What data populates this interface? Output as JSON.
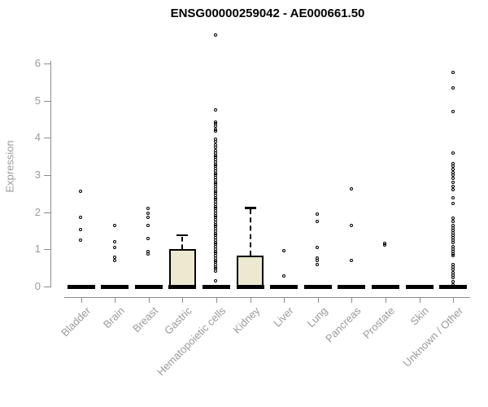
{
  "chart_data": {
    "type": "boxplot",
    "title": "ENSG00000259042 - AE000661.50",
    "ylabel": "Expression",
    "xlabel": "",
    "ylim": [
      0,
      6
    ],
    "yticks": [
      0,
      1,
      2,
      3,
      4,
      5,
      6
    ],
    "grid": false,
    "legend": "none",
    "categories": [
      "Bladder",
      "Brain",
      "Breast",
      "Gastric",
      "Hematopoietic cells",
      "Kidney",
      "Liver",
      "Lung",
      "Pancreas",
      "Prostate",
      "Skin",
      "Unknown / Other"
    ],
    "colors": {
      "box_fill": "#ede8d0",
      "box_border": "#000000",
      "point": "#000000",
      "axis": "#8c8c8c",
      "tick_label": "#9a9a9a",
      "title": "#000000"
    },
    "boxes": [
      {
        "category": "Bladder",
        "q1": 0,
        "median": 0,
        "q3": 0,
        "whisker_low": 0,
        "whisker_high": 0,
        "outliers": [
          2.56,
          1.84,
          1.53,
          1.23
        ]
      },
      {
        "category": "Brain",
        "q1": 0,
        "median": 0,
        "q3": 0,
        "whisker_low": 0,
        "whisker_high": 0,
        "outliers": [
          1.64,
          1.2,
          1.05,
          0.78,
          0.7
        ]
      },
      {
        "category": "Breast",
        "q1": 0,
        "median": 0,
        "q3": 0,
        "whisker_low": 0,
        "whisker_high": 0,
        "outliers": [
          2.1,
          1.95,
          1.84,
          1.64,
          1.29,
          0.94,
          0.87
        ]
      },
      {
        "category": "Gastric",
        "q1": 0,
        "median": 0,
        "q3": 1.0,
        "whisker_low": 0,
        "whisker_high": 1.38,
        "outliers": []
      },
      {
        "category": "Hematopoietic cells",
        "q1": 0,
        "median": 0,
        "q3": 0,
        "whisker_low": 0,
        "whisker_high": 0,
        "outliers": [
          6.74,
          4.74,
          4.42,
          4.36,
          4.3,
          4.22,
          4.16,
          3.96,
          3.88,
          3.8,
          3.72,
          3.64,
          3.58,
          3.52,
          3.46,
          3.4,
          3.34,
          3.28,
          3.22,
          3.16,
          3.1,
          3.04,
          2.98,
          2.92,
          2.86,
          2.8,
          2.74,
          2.68,
          2.62,
          2.56,
          2.5,
          2.44,
          2.38,
          2.32,
          2.26,
          2.2,
          2.14,
          2.08,
          2.02,
          1.96,
          1.9,
          1.84,
          1.78,
          1.72,
          1.66,
          1.6,
          1.54,
          1.48,
          1.42,
          1.36,
          1.3,
          1.24,
          1.18,
          1.12,
          1.06,
          1.0,
          0.94,
          0.88,
          0.82,
          0.76,
          0.7,
          0.64,
          0.58,
          0.52,
          0.46,
          0.4,
          0.15
        ]
      },
      {
        "category": "Kidney",
        "q1": 0,
        "median": 0,
        "q3": 0.83,
        "whisker_low": 0,
        "whisker_high": 2.12,
        "outliers": []
      },
      {
        "category": "Liver",
        "q1": 0,
        "median": 0,
        "q3": 0,
        "whisker_low": 0,
        "whisker_high": 0,
        "outliers": [
          0.96,
          0.28
        ]
      },
      {
        "category": "Lung",
        "q1": 0,
        "median": 0,
        "q3": 0,
        "whisker_low": 0,
        "whisker_high": 0,
        "outliers": [
          1.94,
          1.75,
          1.03,
          0.75,
          0.7,
          0.57
        ]
      },
      {
        "category": "Pancreas",
        "q1": 0,
        "median": 0,
        "q3": 0,
        "whisker_low": 0,
        "whisker_high": 0,
        "outliers": [
          2.62,
          1.62,
          0.7
        ]
      },
      {
        "category": "Prostate",
        "q1": 0,
        "median": 0,
        "q3": 0,
        "whisker_low": 0,
        "whisker_high": 0,
        "outliers": [
          1.15,
          1.1
        ]
      },
      {
        "category": "Skin",
        "q1": 0,
        "median": 0,
        "q3": 0,
        "whisker_low": 0,
        "whisker_high": 0,
        "outliers": []
      },
      {
        "category": "Unknown / Other",
        "q1": 0,
        "median": 0,
        "q3": 0,
        "whisker_low": 0,
        "whisker_high": 0,
        "outliers": [
          5.74,
          5.33,
          4.69,
          3.58,
          3.3,
          3.22,
          3.14,
          3.06,
          2.98,
          2.9,
          2.78,
          2.68,
          2.6,
          2.38,
          2.23,
          1.83,
          1.75,
          1.64,
          1.56,
          1.5,
          1.43,
          1.36,
          1.3,
          1.24,
          1.18,
          1.07,
          1.0,
          0.93,
          0.87,
          0.81,
          0.59,
          0.51,
          0.44,
          0.37,
          0.3,
          0.22,
          0.11,
          0.04
        ]
      }
    ]
  }
}
